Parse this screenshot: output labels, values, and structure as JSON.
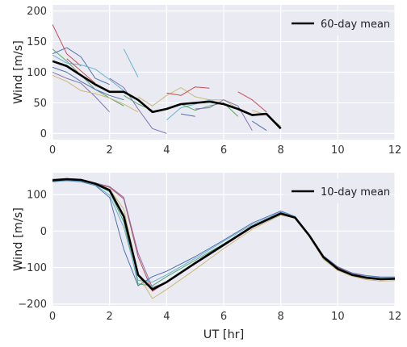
{
  "figure": {
    "background": "#ffffff",
    "axes_facecolor": "#eaeaf2",
    "grid_color": "#ffffff"
  },
  "chart_data": [
    {
      "type": "line",
      "title": "",
      "xlabel": "",
      "ylabel": "Wind [m/s]",
      "xlim": [
        0,
        12
      ],
      "ylim": [
        -10,
        210
      ],
      "xticks": [
        0,
        2,
        4,
        6,
        8,
        10,
        12
      ],
      "yticks": [
        0,
        50,
        100,
        150,
        200
      ],
      "grid": true,
      "legend": {
        "placement": "top-right",
        "entries": [
          "60-day mean"
        ]
      },
      "thin_series": [
        {
          "color": "#c44e52",
          "x": [
            0,
            0.5,
            1
          ],
          "y": [
            178,
            130,
            110
          ]
        },
        {
          "color": "#4c72b0",
          "x": [
            0,
            0.5,
            1,
            1.5,
            2
          ],
          "y": [
            130,
            140,
            125,
            90,
            80
          ]
        },
        {
          "color": "#55a868",
          "x": [
            0,
            0.5,
            1,
            1.5,
            2,
            2.5
          ],
          "y": [
            138,
            118,
            95,
            72,
            58,
            45
          ]
        },
        {
          "color": "#8172b2",
          "x": [
            0,
            0.5,
            1,
            1.5,
            2
          ],
          "y": [
            100,
            90,
            82,
            60,
            35
          ]
        },
        {
          "color": "#ccb974",
          "x": [
            0,
            0.5,
            1,
            1.5,
            2,
            2.5,
            3
          ],
          "y": [
            95,
            85,
            70,
            65,
            58,
            48,
            35
          ]
        },
        {
          "color": "#64b5cd",
          "x": [
            0,
            0.5,
            1,
            1.5,
            2,
            2.5
          ],
          "y": [
            128,
            115,
            112,
            105,
            88,
            70
          ]
        },
        {
          "color": "#4c72b0",
          "x": [
            0,
            0.5,
            1,
            1.5,
            2,
            2.5
          ],
          "y": [
            108,
            100,
            85,
            72,
            62,
            55
          ]
        },
        {
          "color": "#c44e52",
          "x": [
            0.5,
            1,
            1.5
          ],
          "y": [
            122,
            102,
            82
          ]
        },
        {
          "color": "#64b5cd",
          "x": [
            2.5,
            3
          ],
          "y": [
            138,
            92
          ]
        },
        {
          "color": "#8172b2",
          "x": [
            2,
            2.5,
            3,
            3.5,
            4
          ],
          "y": [
            90,
            75,
            40,
            8,
            0
          ]
        },
        {
          "color": "#55a868",
          "x": [
            2.5,
            3,
            3.5
          ],
          "y": [
            62,
            48,
            38
          ]
        },
        {
          "color": "#ccb974",
          "x": [
            3,
            3.5,
            4,
            4.5,
            5,
            5.5,
            6,
            6.5
          ],
          "y": [
            60,
            45,
            62,
            75,
            60,
            55,
            55,
            40
          ]
        },
        {
          "color": "#c44e52",
          "x": [
            4,
            4.5,
            5,
            5.5
          ],
          "y": [
            66,
            62,
            76,
            74
          ]
        },
        {
          "color": "#64b5cd",
          "x": [
            4,
            4.5,
            5,
            5.5,
            6
          ],
          "y": [
            22,
            42,
            48,
            55,
            48
          ]
        },
        {
          "color": "#4c72b0",
          "x": [
            4.5,
            5
          ],
          "y": [
            32,
            28
          ]
        },
        {
          "color": "#55a868",
          "x": [
            4.5,
            5,
            5.5,
            6,
            6.5
          ],
          "y": [
            48,
            38,
            45,
            50,
            28
          ]
        },
        {
          "color": "#8172b2",
          "x": [
            5,
            5.5,
            6,
            6.5,
            7
          ],
          "y": [
            40,
            42,
            55,
            45,
            5
          ]
        },
        {
          "color": "#c44e52",
          "x": [
            6.5,
            7,
            7.5
          ],
          "y": [
            68,
            55,
            35
          ]
        },
        {
          "color": "#ccb974",
          "x": [
            7,
            7.5,
            8
          ],
          "y": [
            38,
            30,
            12
          ]
        },
        {
          "color": "#4c72b0",
          "x": [
            7,
            7.5
          ],
          "y": [
            20,
            5
          ]
        }
      ],
      "mean_series": {
        "name": "60-day mean",
        "color": "#000000",
        "x": [
          0,
          0.5,
          1,
          1.5,
          2,
          2.5,
          3,
          3.5,
          4,
          4.5,
          5,
          5.5,
          6,
          6.5,
          7,
          7.5,
          8
        ],
        "y": [
          118,
          110,
          95,
          80,
          68,
          68,
          55,
          35,
          40,
          48,
          50,
          52,
          48,
          40,
          30,
          32,
          8
        ]
      }
    },
    {
      "type": "line",
      "title": "",
      "xlabel": "UT [hr]",
      "ylabel": "Wind [m/s]",
      "xlim": [
        0,
        12
      ],
      "ylim": [
        -205,
        160
      ],
      "xticks": [
        0,
        2,
        4,
        6,
        8,
        10,
        12
      ],
      "yticks": [
        -200,
        -100,
        0,
        100
      ],
      "grid": true,
      "legend": {
        "placement": "top-right",
        "entries": [
          "10-day mean"
        ]
      },
      "thin_series": [
        {
          "color": "#c44e52",
          "x": [
            0,
            0.5,
            1,
            1.5,
            2,
            2.5,
            3,
            3.5,
            4,
            5,
            6,
            7,
            8,
            8.5,
            9,
            9.5,
            10,
            10.5,
            11,
            11.5,
            12
          ],
          "y": [
            140,
            143,
            141,
            130,
            120,
            88,
            -70,
            -165,
            -140,
            -90,
            -40,
            10,
            48,
            38,
            -10,
            -70,
            -100,
            -115,
            -125,
            -130,
            -130
          ]
        },
        {
          "color": "#4c72b0",
          "x": [
            0,
            0.5,
            1,
            1.5,
            2,
            2.5,
            3,
            3.5,
            4,
            5,
            6,
            7,
            8,
            8.5,
            9,
            9.5,
            10,
            10.5,
            11,
            11.5,
            12
          ],
          "y": [
            135,
            138,
            135,
            125,
            92,
            -50,
            -150,
            -125,
            -110,
            -70,
            -25,
            22,
            55,
            40,
            -10,
            -68,
            -98,
            -115,
            -122,
            -126,
            -126
          ]
        },
        {
          "color": "#55a868",
          "x": [
            0,
            0.5,
            1,
            1.5,
            2,
            2.5,
            3,
            3.5,
            4,
            5,
            6,
            7,
            8,
            8.5,
            9,
            9.5,
            10,
            10.5,
            11,
            11.5,
            12
          ],
          "y": [
            138,
            140,
            138,
            128,
            108,
            25,
            -145,
            -150,
            -125,
            -80,
            -35,
            12,
            48,
            38,
            -12,
            -75,
            -105,
            -120,
            -128,
            -130,
            -130
          ]
        },
        {
          "color": "#8172b2",
          "x": [
            0,
            0.5,
            1,
            1.5,
            2,
            2.5,
            3,
            3.5,
            4,
            5,
            6,
            7,
            8,
            8.5,
            9,
            9.5,
            10,
            10.5,
            11,
            11.5,
            12
          ],
          "y": [
            142,
            144,
            142,
            132,
            122,
            92,
            -60,
            -155,
            -140,
            -90,
            -40,
            10,
            46,
            36,
            -12,
            -72,
            -102,
            -118,
            -127,
            -132,
            -132
          ]
        },
        {
          "color": "#ccb974",
          "x": [
            0,
            0.5,
            1,
            1.5,
            2,
            2.5,
            3,
            3.5,
            4,
            5,
            6,
            7,
            8,
            8.5,
            9,
            9.5,
            10,
            10.5,
            11,
            11.5,
            12
          ],
          "y": [
            138,
            141,
            139,
            129,
            115,
            60,
            -120,
            -185,
            -160,
            -105,
            -48,
            5,
            44,
            35,
            -15,
            -78,
            -108,
            -124,
            -133,
            -137,
            -136
          ]
        },
        {
          "color": "#64b5cd",
          "x": [
            0,
            0.5,
            1,
            1.5,
            2,
            2.5,
            3,
            3.5,
            4,
            5,
            6,
            7,
            8,
            8.5,
            9,
            9.5,
            10,
            10.5,
            11,
            11.5,
            12
          ],
          "y": [
            136,
            139,
            137,
            127,
            98,
            10,
            -135,
            -140,
            -120,
            -75,
            -28,
            18,
            52,
            40,
            -10,
            -72,
            -102,
            -118,
            -125,
            -128,
            -128
          ]
        }
      ],
      "mean_series": {
        "name": "10-day mean",
        "color": "#000000",
        "x": [
          0,
          0.5,
          1,
          1.5,
          2,
          2.5,
          3,
          3.5,
          4,
          5,
          6,
          7,
          8,
          8.5,
          9,
          9.5,
          10,
          10.5,
          11,
          11.5,
          12
        ],
        "y": [
          139,
          142,
          140,
          130,
          112,
          40,
          -120,
          -160,
          -140,
          -88,
          -38,
          12,
          48,
          37,
          -12,
          -72,
          -104,
          -120,
          -128,
          -132,
          -131
        ]
      }
    }
  ]
}
